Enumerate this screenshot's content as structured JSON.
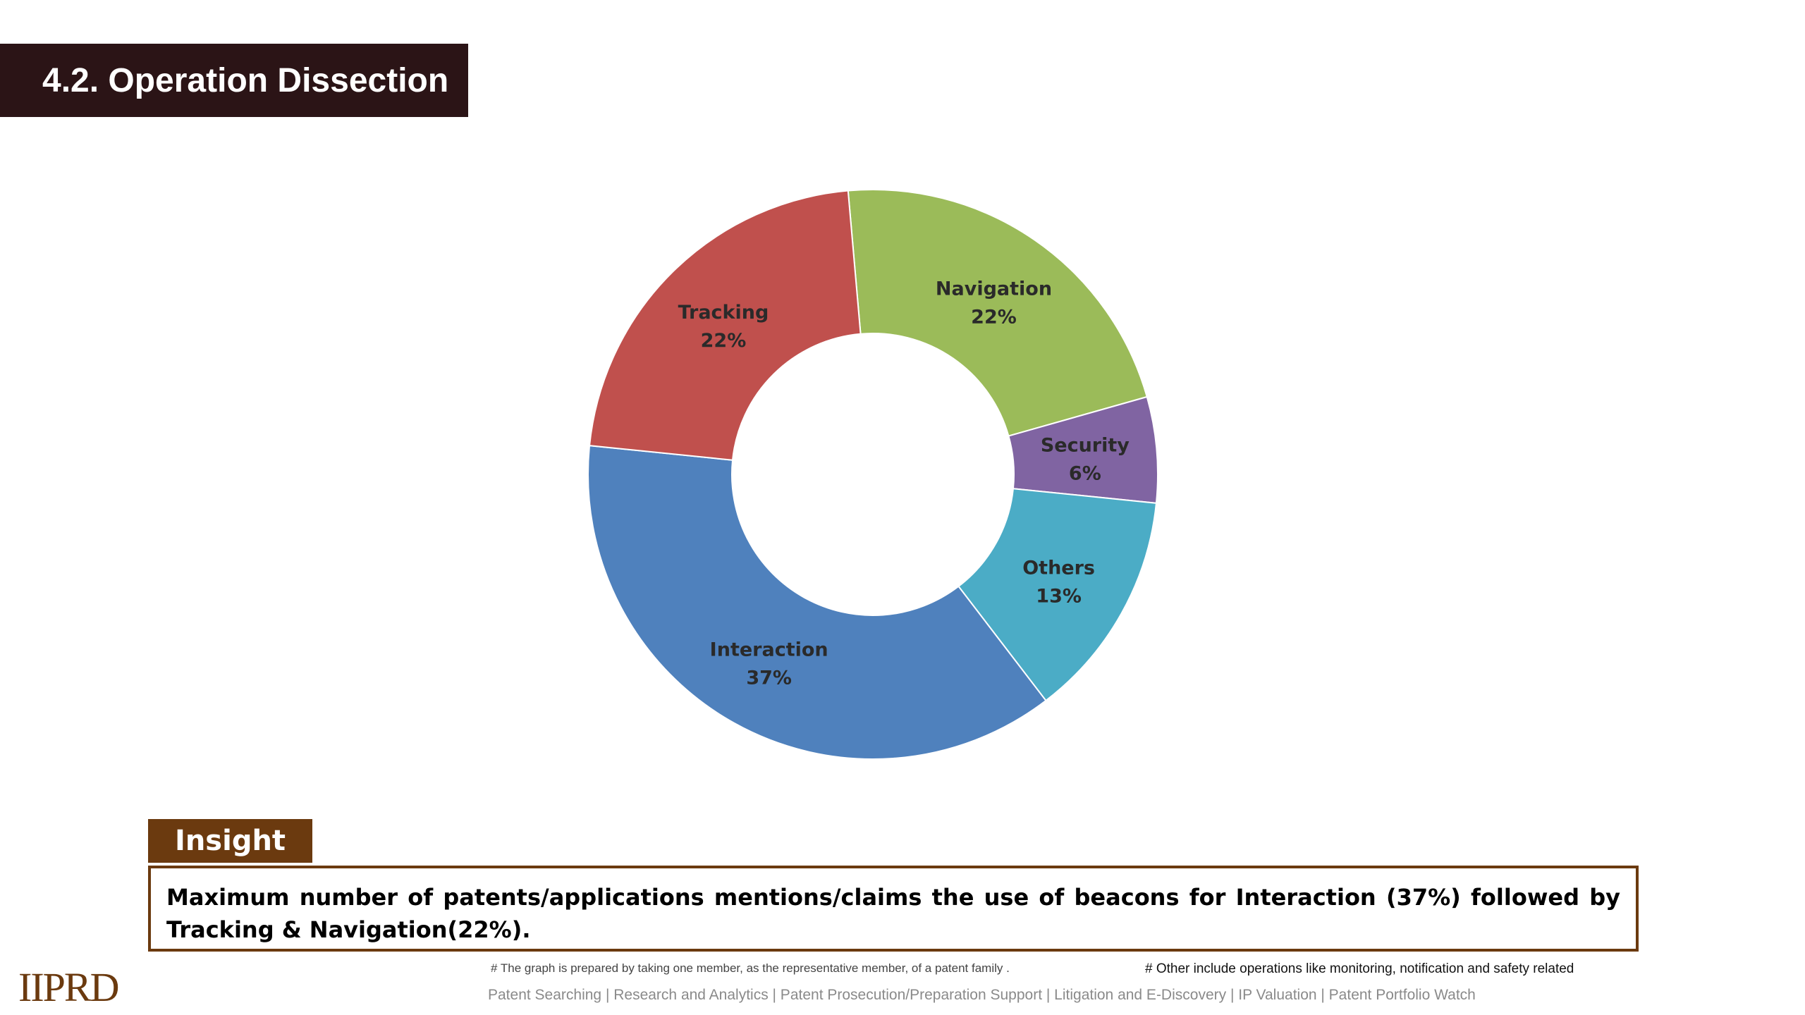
{
  "header": {
    "title": "4.2. Operation Dissection"
  },
  "chart_data": {
    "type": "pie",
    "variant": "donut",
    "slices": [
      {
        "label": "Navigation",
        "value": 22,
        "display": "22%",
        "color": "#9bbb59"
      },
      {
        "label": "Security",
        "value": 6,
        "display": "6%",
        "color": "#8064a2"
      },
      {
        "label": "Others",
        "value": 13,
        "display": "13%",
        "color": "#4bacc6"
      },
      {
        "label": "Interaction",
        "value": 37,
        "display": "37%",
        "color": "#4f81bd"
      },
      {
        "label": "Tracking",
        "value": 22,
        "display": "22%",
        "color": "#c0504d"
      }
    ]
  },
  "insight": {
    "heading": "Insight",
    "text": "Maximum number of patents/applications mentions/claims the use of beacons for Interaction (37%) followed by Tracking & Navigation(22%)."
  },
  "footer": {
    "note_left": "# The graph is prepared by taking one member, as the representative member, of a patent family .",
    "note_right": "# Other include operations like monitoring, notification and safety related",
    "services": "Patent Searching | Research and Analytics | Patent Prosecution/Preparation Support | Litigation and E-Discovery | IP Valuation | Patent Portfolio Watch",
    "logo": "IIPRD"
  },
  "colors": {
    "title_bg": "#2b1416",
    "insight_accent": "#6b3a0f"
  }
}
